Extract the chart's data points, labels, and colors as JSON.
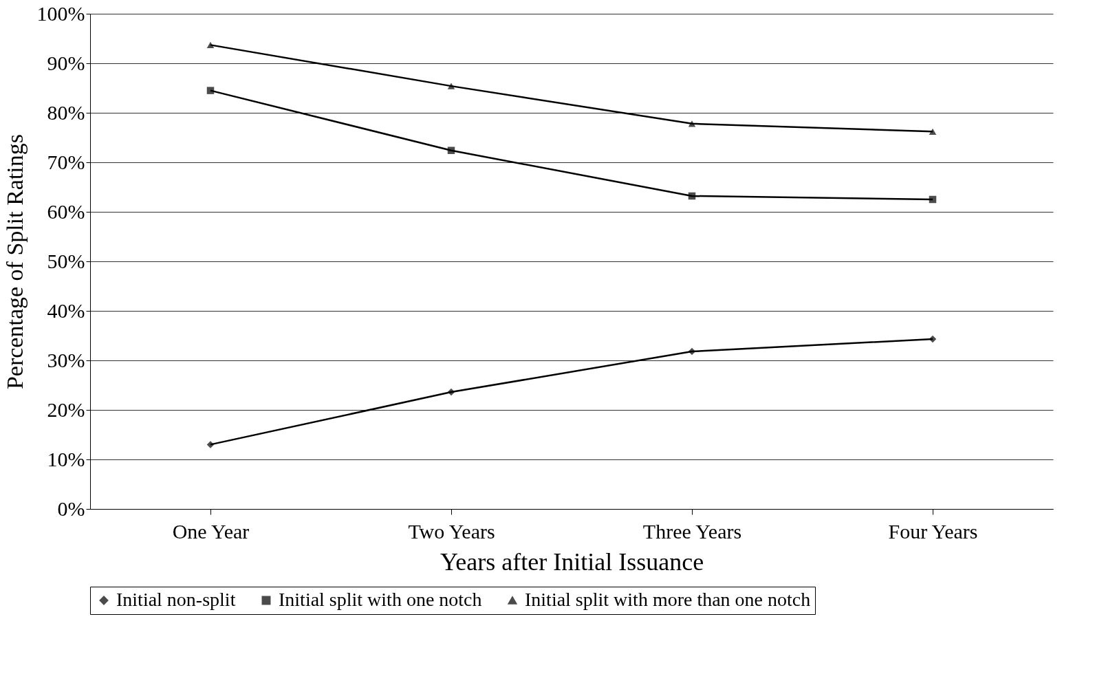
{
  "chart_data": {
    "type": "line",
    "xlabel": "Years after Initial Issuance",
    "ylabel": "Percentage of Split Ratings",
    "categories": [
      "One Year",
      "Two Years",
      "Three Years",
      "Four Years"
    ],
    "series": [
      {
        "name": "Initial non-split",
        "color": "#000000",
        "marker": "diamond",
        "values": [
          13,
          23.6,
          31.8,
          34.3
        ]
      },
      {
        "name": "Initial split with one notch",
        "color": "#000000",
        "marker": "square",
        "values": [
          84.5,
          72.4,
          63.2,
          62.5
        ]
      },
      {
        "name": "Initial split with more than one notch",
        "color": "#000000",
        "marker": "triangle",
        "values": [
          93.7,
          85.4,
          77.8,
          76.2
        ]
      }
    ],
    "ylim": [
      0,
      100
    ],
    "yticks": [
      {
        "value": 0,
        "label": "0%"
      },
      {
        "value": 10,
        "label": "10%"
      },
      {
        "value": 20,
        "label": "20%"
      },
      {
        "value": 30,
        "label": "30%"
      },
      {
        "value": 40,
        "label": "40%"
      },
      {
        "value": 50,
        "label": "50%"
      },
      {
        "value": 60,
        "label": "60%"
      },
      {
        "value": 70,
        "label": "70%"
      },
      {
        "value": 80,
        "label": "80%"
      },
      {
        "value": 90,
        "label": "90%"
      },
      {
        "value": 100,
        "label": "100%"
      }
    ],
    "grid": "y",
    "legend": "bottom",
    "line_style": "solid"
  }
}
